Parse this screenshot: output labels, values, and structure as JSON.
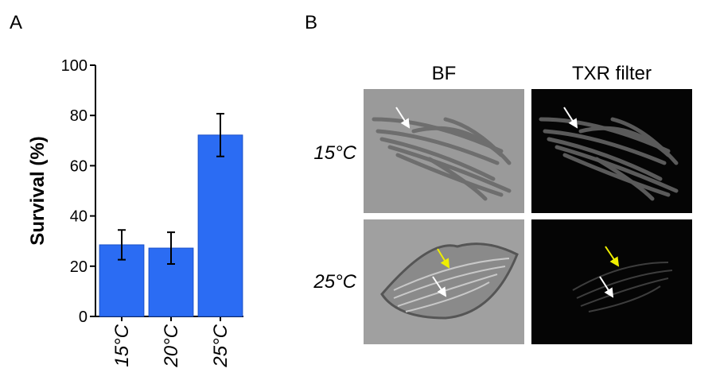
{
  "panel_a_label": "A",
  "panel_b_label": "B",
  "chart_data": {
    "type": "bar",
    "y_label": "Survival (%)",
    "categories": [
      "15°C",
      "20°C",
      "25°C"
    ],
    "values": [
      28.5,
      27.2,
      72.2
    ],
    "errors": [
      5.9,
      6.3,
      8.5
    ],
    "color": "#2b6cf3",
    "ylim": [
      0,
      100
    ],
    "yticks": [
      0,
      20,
      40,
      60,
      80,
      100
    ],
    "grid": false
  },
  "panel_b": {
    "columns": [
      "BF",
      "TXR filter"
    ],
    "rows": [
      "15°C",
      "25°C"
    ]
  }
}
